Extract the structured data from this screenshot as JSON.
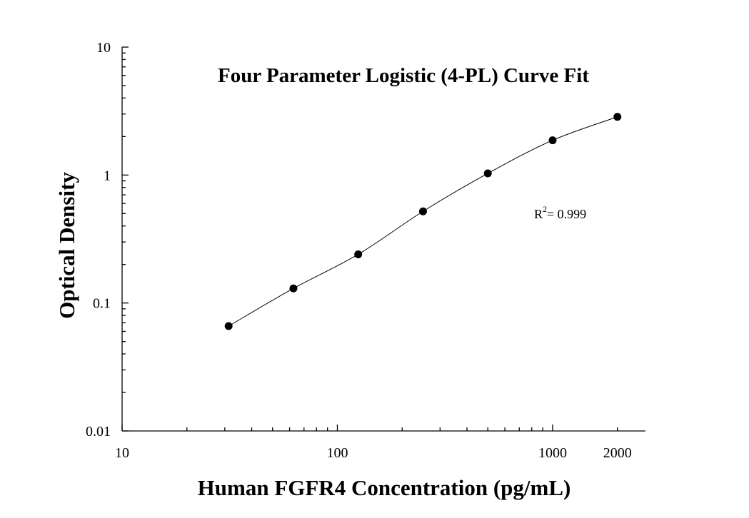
{
  "chart_data": {
    "type": "scatter",
    "title": "Four Parameter Logistic (4-PL) Curve Fit",
    "xlabel": "Human FGFR4 Concentration (pg/mL)",
    "ylabel": "Optical Density",
    "x_scale": "log",
    "y_scale": "log",
    "xlim": [
      10,
      2700
    ],
    "ylim": [
      0.01,
      10
    ],
    "x_ticks": [
      10,
      100,
      1000,
      2000
    ],
    "x_tick_labels": [
      "10",
      "100",
      "1000",
      "2000"
    ],
    "y_ticks": [
      0.01,
      0.1,
      1,
      10
    ],
    "y_tick_labels": [
      "0.01",
      "0.1",
      "1",
      "10"
    ],
    "grid": false,
    "series": [
      {
        "x": [
          31.25,
          62.5,
          125,
          250,
          500,
          1000,
          2000
        ],
        "y": [
          0.066,
          0.13,
          0.24,
          0.52,
          1.03,
          1.87,
          2.85
        ]
      }
    ],
    "annotation": {
      "r2_prefix": "R",
      "r2_sup": "2",
      "r2_value": "= 0.999"
    },
    "colors": {
      "marker": "#000000",
      "line": "#000000"
    }
  }
}
